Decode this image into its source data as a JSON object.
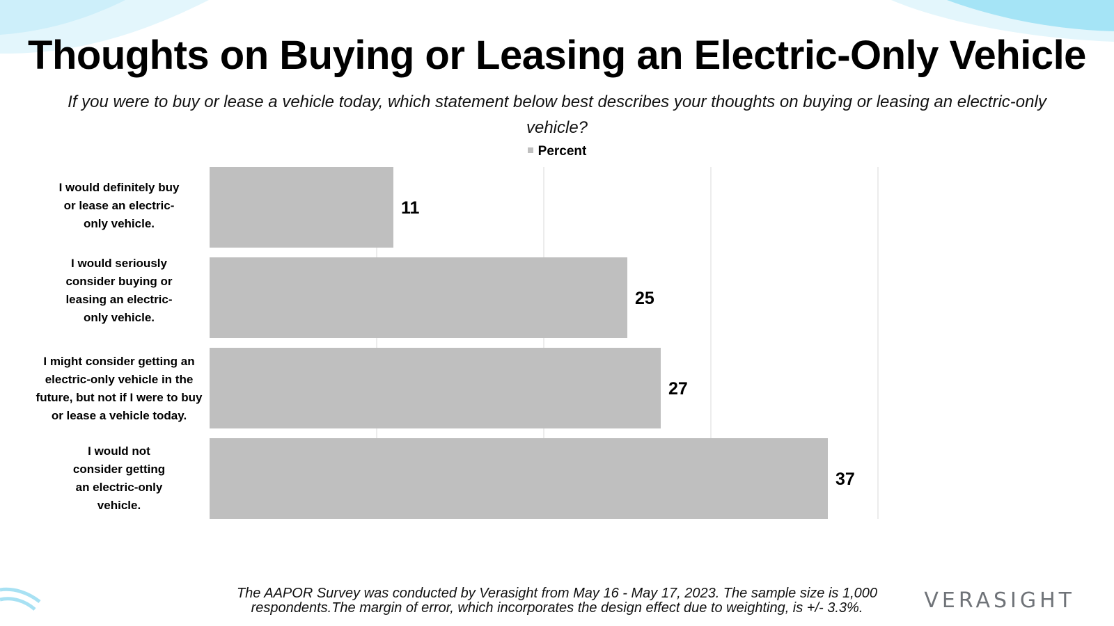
{
  "title": "Thoughts on Buying or Leasing an Electric-Only Vehicle",
  "subtitle": "If you were to buy or lease a vehicle today, which statement below best describes your thoughts on buying or leasing an electric-only vehicle?",
  "legend": {
    "label": "Percent"
  },
  "colors": {
    "bar": "#bfbfbf",
    "grid": "#e6e6e6",
    "deco_light": "#dff5fc",
    "deco_mid": "#9fe3f6"
  },
  "chart_data": {
    "type": "bar",
    "orientation": "horizontal",
    "series": [
      {
        "name": "Percent",
        "values": [
          11,
          25,
          27,
          37
        ]
      }
    ],
    "categories": [
      "I would definitely buy or lease an electric-only vehicle.",
      "I would seriously consider buying or leasing an electric-only vehicle.",
      "I might consider getting an electric-only vehicle in the future, but not if I were to buy or lease a vehicle today.",
      "I would not consider getting an electric-only vehicle."
    ],
    "category_label_lines": [
      [
        "I would definitely buy",
        "or lease an electric-",
        "only vehicle."
      ],
      [
        "I would seriously",
        "consider buying or",
        "leasing an electric-",
        "only vehicle."
      ],
      [
        "I might consider getting an",
        "electric-only vehicle in the",
        "future, but not if I were to buy",
        "or lease a vehicle today."
      ],
      [
        "I would not",
        "consider getting",
        "an electric-only",
        "vehicle."
      ]
    ],
    "data_labels": [
      "11",
      "25",
      "27",
      "37"
    ],
    "xlim": [
      0,
      40
    ],
    "grid_step": 10,
    "grid": true,
    "legend_position": "top-center"
  },
  "footnote": "The AAPOR Survey was conducted by Verasight from May 16 - May 17, 2023. The sample size is 1,000 respondents.The margin of error, which incorporates the design effect due to weighting, is +/- 3.3%.",
  "brand": "VERASIGHT"
}
